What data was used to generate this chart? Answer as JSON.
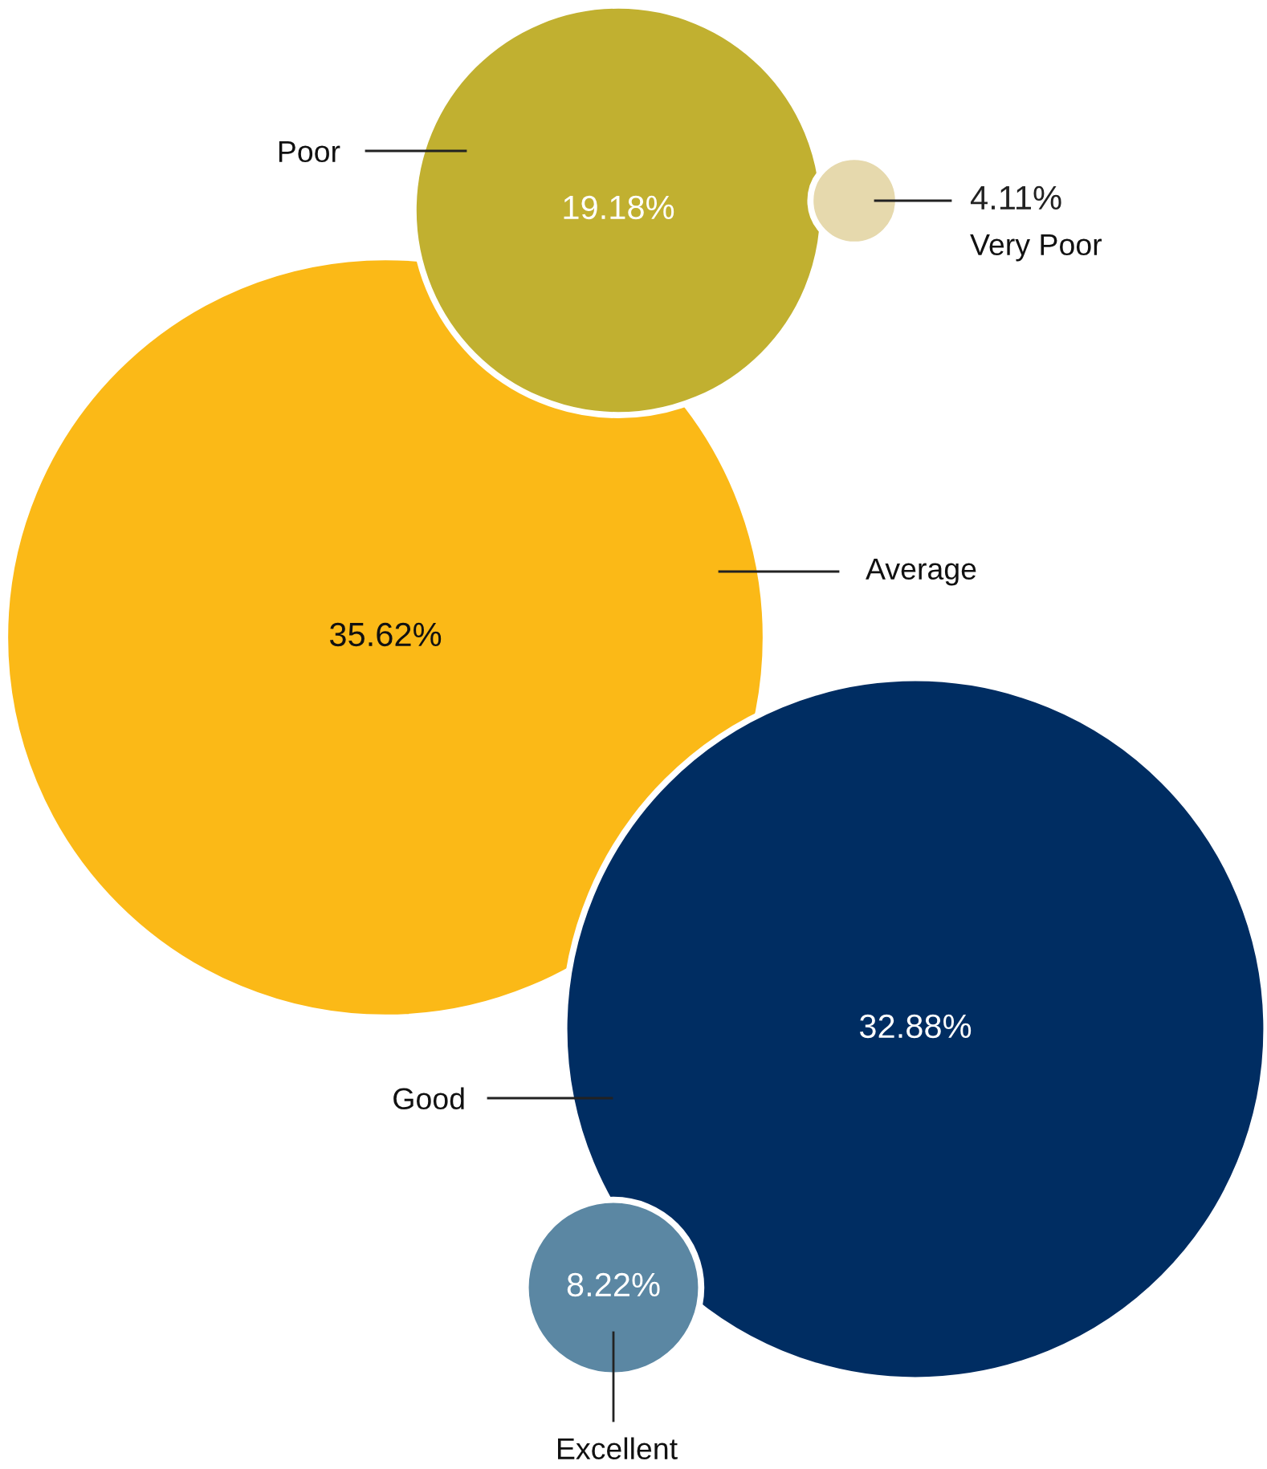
{
  "chart_data": {
    "type": "other",
    "categories": [
      "Very Poor",
      "Poor",
      "Average",
      "Good",
      "Excellent"
    ],
    "values": [
      4.11,
      19.18,
      35.62,
      32.88,
      8.22
    ],
    "colors": [
      "#e6d9ad",
      "#c1b030",
      "#fbb917",
      "#002d62",
      "#5b87a3"
    ],
    "value_labels": [
      "4.11%",
      "19.18%",
      "35.62%",
      "32.88%",
      "8.22%"
    ]
  }
}
